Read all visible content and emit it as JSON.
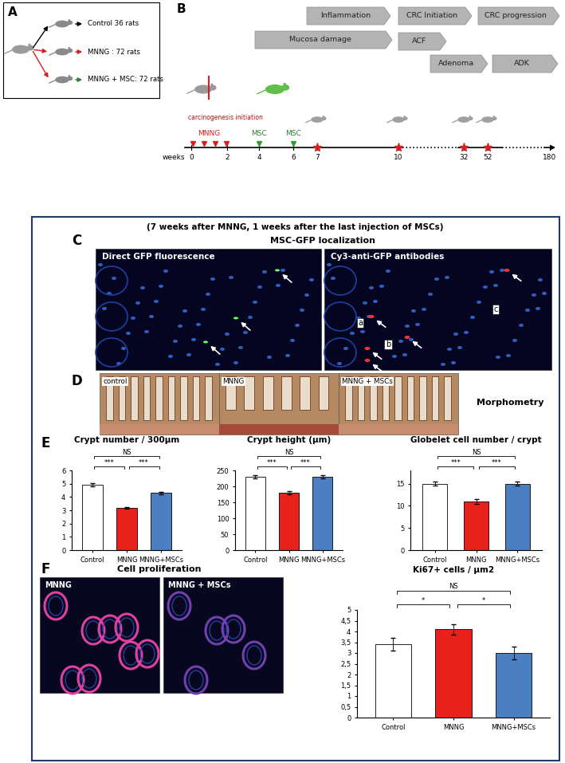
{
  "panels": {
    "A": {
      "label": "A",
      "groups": [
        "Control 36 rats",
        "MNNG : 72 rats",
        "MNNG + MSC: 72 rats"
      ]
    },
    "B": {
      "label": "B",
      "phases": [
        "Inflammation",
        "CRC Initiation",
        "CRC progression",
        "Mucosa damage",
        "ACF",
        "Adenoma",
        "ADK"
      ],
      "timeline": {
        "start_label": "carcinogenesis initiation",
        "treatment": "MNNG",
        "injection": "MSC",
        "axis_label": "weeks",
        "ticks": [
          0,
          2,
          4,
          6,
          7,
          10,
          32,
          52,
          180
        ]
      }
    },
    "C": {
      "label": "C",
      "header": "(7 weeks after MNNG, 1 weeks after the last injection of MSCs)",
      "title": "MSC-GFP localization",
      "images": [
        "Direct GFP fluorescence",
        "Cy3-anti-GFP antibodies"
      ],
      "markers": [
        "a",
        "b",
        "c"
      ]
    },
    "D": {
      "label": "D",
      "images": [
        "control",
        "MNNG",
        "MNNG + MSCs"
      ],
      "title": "Morphometry"
    },
    "E": {
      "label": "E"
    },
    "F": {
      "label": "F",
      "title": "Cell proliferation",
      "images": [
        "MNNG",
        "MNNG + MSCs"
      ]
    }
  },
  "chart_data": [
    {
      "type": "bar",
      "title": "Crypt number / 300µm",
      "categories": [
        "Control",
        "MNNG",
        "MNNG+MSCs"
      ],
      "values": [
        4.9,
        3.2,
        4.3
      ],
      "errors": [
        0.12,
        0.05,
        0.08
      ],
      "colors": [
        "#ffffff",
        "#e8211a",
        "#4a7fc1"
      ],
      "ylim": [
        0,
        6
      ],
      "yticks": [
        0,
        1,
        2,
        3,
        4,
        5,
        6
      ],
      "significance": [
        {
          "from": "Control",
          "to": "MNNG+MSCs",
          "label": "NS"
        },
        {
          "from": "Control",
          "to": "MNNG",
          "label": "***"
        },
        {
          "from": "MNNG",
          "to": "MNNG+MSCs",
          "label": "***"
        }
      ]
    },
    {
      "type": "bar",
      "title": "Crypt height (µm)",
      "categories": [
        "Control",
        "MNNG",
        "MNNG+MSCs"
      ],
      "values": [
        230,
        180,
        230
      ],
      "errors": [
        5,
        4,
        5
      ],
      "colors": [
        "#ffffff",
        "#e8211a",
        "#4a7fc1"
      ],
      "ylim": [
        0,
        250
      ],
      "yticks": [
        0,
        50,
        100,
        150,
        200,
        250
      ],
      "significance": [
        {
          "from": "Control",
          "to": "MNNG+MSCs",
          "label": "NS"
        },
        {
          "from": "Control",
          "to": "MNNG",
          "label": "***"
        },
        {
          "from": "MNNG",
          "to": "MNNG+MSCs",
          "label": "***"
        }
      ]
    },
    {
      "type": "bar",
      "title": "Globelet cell number / crypt",
      "categories": [
        "Control",
        "MNNG",
        "MNNG+MSCs"
      ],
      "values": [
        15,
        11,
        15
      ],
      "errors": [
        0.5,
        0.5,
        0.5
      ],
      "colors": [
        "#ffffff",
        "#e8211a",
        "#4a7fc1"
      ],
      "ylim": [
        0,
        18
      ],
      "yticks": [
        0,
        5,
        10,
        15
      ],
      "significance": [
        {
          "from": "Control",
          "to": "MNNG+MSCs",
          "label": "NS"
        },
        {
          "from": "Control",
          "to": "MNNG",
          "label": "***"
        },
        {
          "from": "MNNG",
          "to": "MNNG+MSCs",
          "label": "***"
        }
      ]
    },
    {
      "type": "bar",
      "title": "Ki67+ cells / µm2",
      "categories": [
        "Control",
        "MNNG",
        "MNNG+MSCs"
      ],
      "values": [
        3.4,
        4.1,
        3.0
      ],
      "errors": [
        0.3,
        0.25,
        0.3
      ],
      "colors": [
        "#ffffff",
        "#e8211a",
        "#4a7fc1"
      ],
      "ylim": [
        0,
        5
      ],
      "yticks": [
        0,
        {
          "value": 0.5,
          "label": "0,5"
        },
        1,
        {
          "value": 1.5,
          "label": "1,5"
        },
        2,
        {
          "value": 2.5,
          "label": "2,5"
        },
        3,
        {
          "value": 3.5,
          "label": "3,5"
        },
        4,
        {
          "value": 4.5,
          "label": "4,5"
        },
        5
      ],
      "significance": [
        {
          "from": "Control",
          "to": "MNNG+MSCs",
          "label": "NS"
        },
        {
          "from": "Control",
          "to": "MNNG",
          "label": "*"
        },
        {
          "from": "MNNG",
          "to": "MNNG+MSCs",
          "label": "*"
        }
      ]
    }
  ]
}
